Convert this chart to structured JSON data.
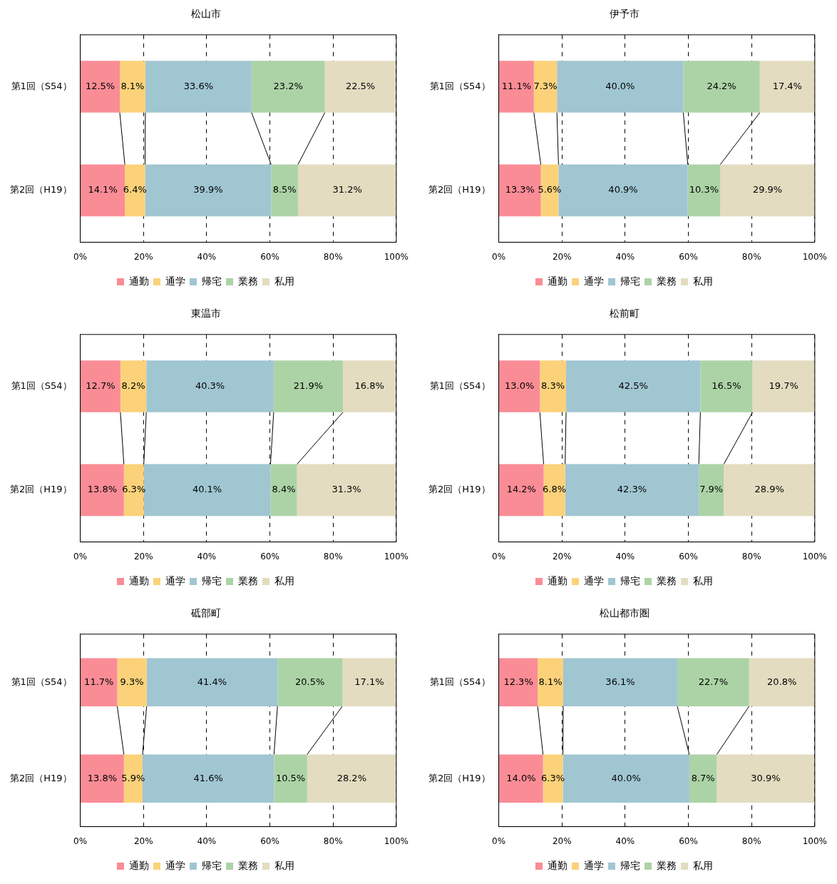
{
  "chart_data": [
    {
      "type": "bar",
      "title": "松山市",
      "orientation": "horizontal",
      "stacked": true,
      "categories": [
        "第1回（S54）",
        "第2回（H19）"
      ],
      "xlim": [
        0,
        100
      ],
      "xticks": [
        {
          "value": 0,
          "label": "0%"
        },
        {
          "value": 20,
          "label": "20%"
        },
        {
          "value": 40,
          "label": "40%"
        },
        {
          "value": 60,
          "label": "60%"
        },
        {
          "value": 80,
          "label": "80%"
        },
        {
          "value": 100,
          "label": "100%"
        }
      ],
      "grid": "x",
      "legend": "bottom",
      "series": [
        {
          "name": "通勤",
          "color": "#fa8c96",
          "values": [
            12.5,
            14.1
          ],
          "value_labels": [
            "12.5%",
            "14.1%"
          ]
        },
        {
          "name": "通学",
          "color": "#fbd27a",
          "values": [
            8.1,
            6.4
          ],
          "value_labels": [
            "8.1%",
            "6.4%"
          ]
        },
        {
          "name": "帰宅",
          "color": "#a0c6d2",
          "values": [
            33.6,
            39.9
          ],
          "value_labels": [
            "33.6%",
            "39.9%"
          ]
        },
        {
          "name": "業務",
          "color": "#acd3a6",
          "values": [
            23.2,
            8.5
          ],
          "value_labels": [
            "23.2%",
            "8.5%"
          ]
        },
        {
          "name": "私用",
          "color": "#e3dcc0",
          "values": [
            22.5,
            31.2
          ],
          "value_labels": [
            "22.5%",
            "31.2%"
          ]
        }
      ]
    },
    {
      "type": "bar",
      "title": "伊予市",
      "orientation": "horizontal",
      "stacked": true,
      "categories": [
        "第1回（S54）",
        "第2回（H19）"
      ],
      "xlim": [
        0,
        100
      ],
      "xticks": [
        {
          "value": 0,
          "label": "0%"
        },
        {
          "value": 20,
          "label": "20%"
        },
        {
          "value": 40,
          "label": "40%"
        },
        {
          "value": 60,
          "label": "60%"
        },
        {
          "value": 80,
          "label": "80%"
        },
        {
          "value": 100,
          "label": "100%"
        }
      ],
      "grid": "x",
      "legend": "bottom",
      "series": [
        {
          "name": "通勤",
          "color": "#fa8c96",
          "values": [
            11.1,
            13.3
          ],
          "value_labels": [
            "11.1%",
            "13.3%"
          ]
        },
        {
          "name": "通学",
          "color": "#fbd27a",
          "values": [
            7.3,
            5.6
          ],
          "value_labels": [
            "7.3%",
            "5.6%"
          ]
        },
        {
          "name": "帰宅",
          "color": "#a0c6d2",
          "values": [
            40.0,
            40.9
          ],
          "value_labels": [
            "40.0%",
            "40.9%"
          ]
        },
        {
          "name": "業務",
          "color": "#acd3a6",
          "values": [
            24.2,
            10.3
          ],
          "value_labels": [
            "24.2%",
            "10.3%"
          ]
        },
        {
          "name": "私用",
          "color": "#e3dcc0",
          "values": [
            17.4,
            29.9
          ],
          "value_labels": [
            "17.4%",
            "29.9%"
          ]
        }
      ]
    },
    {
      "type": "bar",
      "title": "東温市",
      "orientation": "horizontal",
      "stacked": true,
      "categories": [
        "第1回（S54）",
        "第2回（H19）"
      ],
      "xlim": [
        0,
        100
      ],
      "xticks": [
        {
          "value": 0,
          "label": "0%"
        },
        {
          "value": 20,
          "label": "20%"
        },
        {
          "value": 40,
          "label": "40%"
        },
        {
          "value": 60,
          "label": "60%"
        },
        {
          "value": 80,
          "label": "80%"
        },
        {
          "value": 100,
          "label": "100%"
        }
      ],
      "grid": "x",
      "legend": "bottom",
      "series": [
        {
          "name": "通勤",
          "color": "#fa8c96",
          "values": [
            12.7,
            13.8
          ],
          "value_labels": [
            "12.7%",
            "13.8%"
          ]
        },
        {
          "name": "通学",
          "color": "#fbd27a",
          "values": [
            8.2,
            6.3
          ],
          "value_labels": [
            "8.2%",
            "6.3%"
          ]
        },
        {
          "name": "帰宅",
          "color": "#a0c6d2",
          "values": [
            40.3,
            40.1
          ],
          "value_labels": [
            "40.3%",
            "40.1%"
          ]
        },
        {
          "name": "業務",
          "color": "#acd3a6",
          "values": [
            21.9,
            8.4
          ],
          "value_labels": [
            "21.9%",
            "8.4%"
          ]
        },
        {
          "name": "私用",
          "color": "#e3dcc0",
          "values": [
            16.8,
            31.3
          ],
          "value_labels": [
            "16.8%",
            "31.3%"
          ]
        }
      ]
    },
    {
      "type": "bar",
      "title": "松前町",
      "orientation": "horizontal",
      "stacked": true,
      "categories": [
        "第1回（S54）",
        "第2回（H19）"
      ],
      "xlim": [
        0,
        100
      ],
      "xticks": [
        {
          "value": 0,
          "label": "0%"
        },
        {
          "value": 20,
          "label": "20%"
        },
        {
          "value": 40,
          "label": "40%"
        },
        {
          "value": 60,
          "label": "60%"
        },
        {
          "value": 80,
          "label": "80%"
        },
        {
          "value": 100,
          "label": "100%"
        }
      ],
      "grid": "x",
      "legend": "bottom",
      "series": [
        {
          "name": "通勤",
          "color": "#fa8c96",
          "values": [
            13.0,
            14.2
          ],
          "value_labels": [
            "13.0%",
            "14.2%"
          ]
        },
        {
          "name": "通学",
          "color": "#fbd27a",
          "values": [
            8.3,
            6.8
          ],
          "value_labels": [
            "8.3%",
            "6.8%"
          ]
        },
        {
          "name": "帰宅",
          "color": "#a0c6d2",
          "values": [
            42.5,
            42.3
          ],
          "value_labels": [
            "42.5%",
            "42.3%"
          ]
        },
        {
          "name": "業務",
          "color": "#acd3a6",
          "values": [
            16.5,
            7.9
          ],
          "value_labels": [
            "16.5%",
            "7.9%"
          ]
        },
        {
          "name": "私用",
          "color": "#e3dcc0",
          "values": [
            19.7,
            28.9
          ],
          "value_labels": [
            "19.7%",
            "28.9%"
          ]
        }
      ]
    },
    {
      "type": "bar",
      "title": "砥部町",
      "orientation": "horizontal",
      "stacked": true,
      "categories": [
        "第1回（S54）",
        "第2回（H19）"
      ],
      "xlim": [
        0,
        100
      ],
      "xticks": [
        {
          "value": 0,
          "label": "0%"
        },
        {
          "value": 20,
          "label": "20%"
        },
        {
          "value": 40,
          "label": "40%"
        },
        {
          "value": 60,
          "label": "60%"
        },
        {
          "value": 80,
          "label": "80%"
        },
        {
          "value": 100,
          "label": "100%"
        }
      ],
      "grid": "x",
      "legend": "bottom",
      "series": [
        {
          "name": "通勤",
          "color": "#fa8c96",
          "values": [
            11.7,
            13.8
          ],
          "value_labels": [
            "11.7%",
            "13.8%"
          ]
        },
        {
          "name": "通学",
          "color": "#fbd27a",
          "values": [
            9.3,
            5.9
          ],
          "value_labels": [
            "9.3%",
            "5.9%"
          ]
        },
        {
          "name": "帰宅",
          "color": "#a0c6d2",
          "values": [
            41.4,
            41.6
          ],
          "value_labels": [
            "41.4%",
            "41.6%"
          ]
        },
        {
          "name": "業務",
          "color": "#acd3a6",
          "values": [
            20.5,
            10.5
          ],
          "value_labels": [
            "20.5%",
            "10.5%"
          ]
        },
        {
          "name": "私用",
          "color": "#e3dcc0",
          "values": [
            17.1,
            28.2
          ],
          "value_labels": [
            "17.1%",
            "28.2%"
          ]
        }
      ]
    },
    {
      "type": "bar",
      "title": "松山都市圏",
      "orientation": "horizontal",
      "stacked": true,
      "categories": [
        "第1回（S54）",
        "第2回（H19）"
      ],
      "xlim": [
        0,
        100
      ],
      "xticks": [
        {
          "value": 0,
          "label": "0%"
        },
        {
          "value": 20,
          "label": "20%"
        },
        {
          "value": 40,
          "label": "40%"
        },
        {
          "value": 60,
          "label": "60%"
        },
        {
          "value": 80,
          "label": "80%"
        },
        {
          "value": 100,
          "label": "100%"
        }
      ],
      "grid": "x",
      "legend": "bottom",
      "series": [
        {
          "name": "通勤",
          "color": "#fa8c96",
          "values": [
            12.3,
            14.0
          ],
          "value_labels": [
            "12.3%",
            "14.0%"
          ]
        },
        {
          "name": "通学",
          "color": "#fbd27a",
          "values": [
            8.1,
            6.3
          ],
          "value_labels": [
            "8.1%",
            "6.3%"
          ]
        },
        {
          "name": "帰宅",
          "color": "#a0c6d2",
          "values": [
            36.1,
            40.0
          ],
          "value_labels": [
            "36.1%",
            "40.0%"
          ]
        },
        {
          "name": "業務",
          "color": "#acd3a6",
          "values": [
            22.7,
            8.7
          ],
          "value_labels": [
            "22.7%",
            "8.7%"
          ]
        },
        {
          "name": "私用",
          "color": "#e3dcc0",
          "values": [
            20.8,
            30.9
          ],
          "value_labels": [
            "20.8%",
            "30.9%"
          ]
        }
      ]
    }
  ]
}
